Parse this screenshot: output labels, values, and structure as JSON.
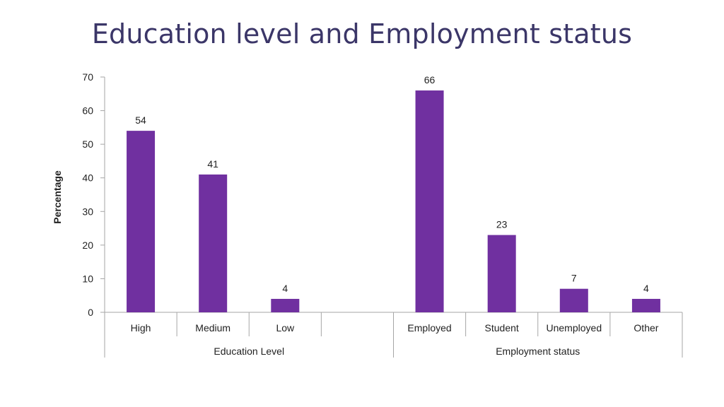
{
  "slide": {
    "title": "Education level and Employment status"
  },
  "colors": {
    "bar": "#7030a0",
    "axis": "#a6a6a6",
    "title": "#3b3668"
  },
  "chart_data": {
    "type": "bar",
    "title": "Education level and Employment status",
    "ylabel": "Percentage",
    "xlabel": "",
    "ylim": [
      0,
      70
    ],
    "yticks": [
      0,
      10,
      20,
      30,
      40,
      50,
      60,
      70
    ],
    "grid": false,
    "legend": "none",
    "categories": [
      "High",
      "Medium",
      "Low",
      "",
      "Employed",
      "Student",
      "Unemployed",
      "Other"
    ],
    "values": [
      54,
      41,
      4,
      null,
      66,
      23,
      7,
      4
    ],
    "groups": [
      {
        "name": "Education Level",
        "categories": [
          "High",
          "Medium",
          "Low",
          ""
        ]
      },
      {
        "name": "Employment status",
        "categories": [
          "Employed",
          "Student",
          "Unemployed",
          "Other"
        ]
      }
    ]
  }
}
